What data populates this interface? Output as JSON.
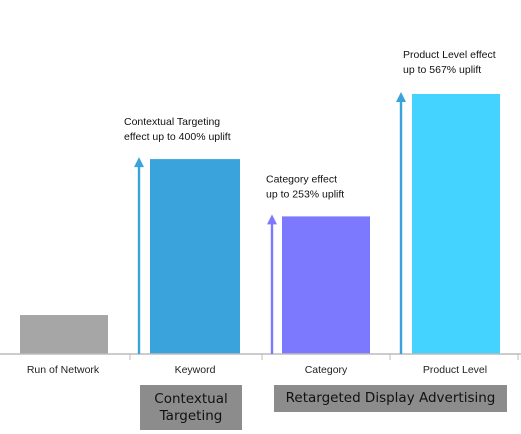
{
  "chart_data": {
    "type": "bar",
    "categories": [
      "Run of Network",
      "Keyword",
      "Category",
      "Product Level"
    ],
    "values": [
      1,
      5,
      3.53,
      6.67
    ],
    "ylim": [
      0,
      7
    ],
    "colors": [
      "#a6a6a6",
      "#3aa3dc",
      "#7d79ff",
      "#44d3ff"
    ],
    "annotations": [
      {
        "category": "Keyword",
        "lines": [
          "Contextual Targeting",
          "effect up to 400% uplift"
        ],
        "arrow_color": "#3aa3dc"
      },
      {
        "category": "Category",
        "lines": [
          "Category effect",
          "up to 253% uplift"
        ],
        "arrow_color": "#7d79ff"
      },
      {
        "category": "Product Level",
        "lines": [
          "Product Level effect",
          "up to 567% uplift"
        ],
        "arrow_color": "#3aa3dc"
      }
    ],
    "groups": [
      {
        "label_lines": [
          "Contextual",
          "Targeting"
        ],
        "categories": [
          "Keyword"
        ]
      },
      {
        "label_lines": [
          "Retargeted Display Advertising"
        ],
        "categories": [
          "Category",
          "Product Level"
        ]
      }
    ],
    "grid": false,
    "legend": "none"
  }
}
